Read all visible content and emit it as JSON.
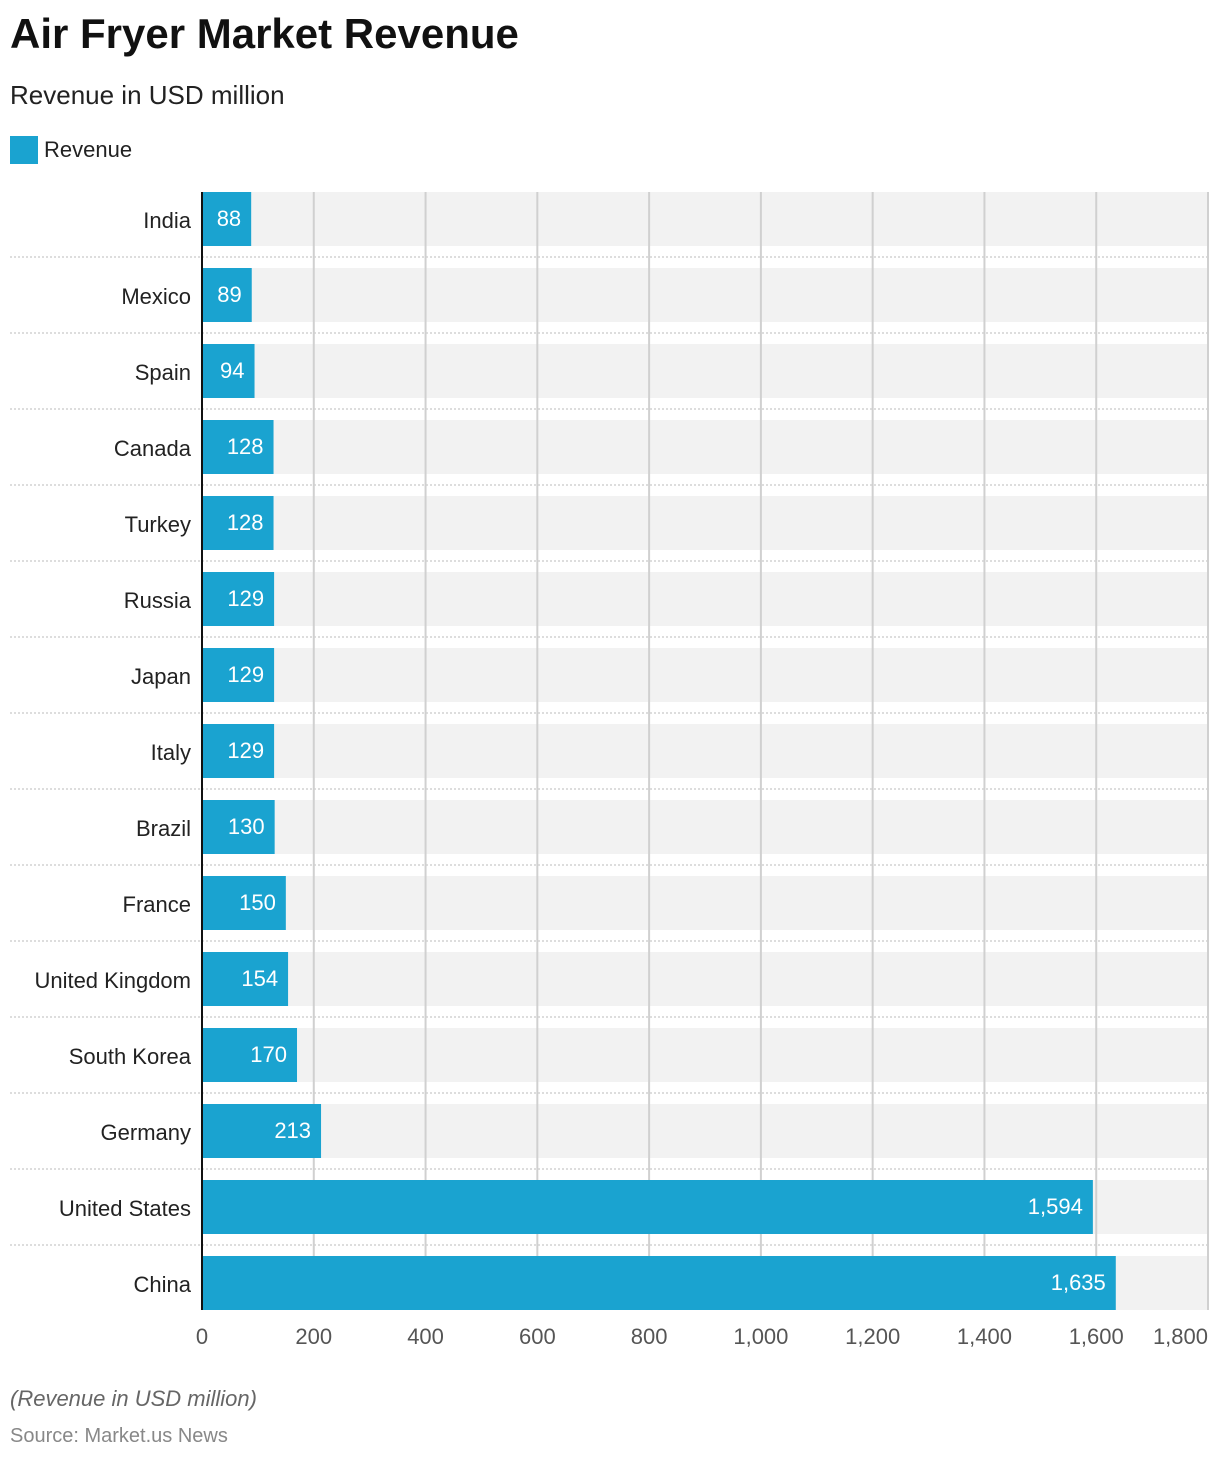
{
  "chart_data": {
    "type": "bar",
    "orientation": "horizontal",
    "title": "Air Fryer Market Revenue",
    "subtitle": "Revenue in USD million",
    "legend": [
      "Revenue"
    ],
    "legend_placement": "top-left",
    "categories": [
      "India",
      "Mexico",
      "Spain",
      "Canada",
      "Turkey",
      "Russia",
      "Japan",
      "Italy",
      "Brazil",
      "France",
      "United Kingdom",
      "South Korea",
      "Germany",
      "United States",
      "China"
    ],
    "series": [
      {
        "name": "Revenue",
        "values": [
          88,
          89,
          94,
          128,
          128,
          129,
          129,
          129,
          130,
          150,
          154,
          170,
          213,
          1594,
          1635
        ]
      }
    ],
    "value_labels": [
      "88",
      "89",
      "94",
      "128",
      "128",
      "129",
      "129",
      "129",
      "130",
      "150",
      "154",
      "170",
      "213",
      "1,594",
      "1,635"
    ],
    "xlim": [
      0,
      1800
    ],
    "xticks": [
      0,
      200,
      400,
      600,
      800,
      1000,
      1200,
      1400,
      1600,
      1800
    ],
    "xtick_labels": [
      "0",
      "200",
      "400",
      "600",
      "800",
      "1,000",
      "1,200",
      "1,400",
      "1,600",
      "1,800"
    ],
    "grid": true,
    "bar_color": "#1aa3d0"
  },
  "footer": {
    "note": "(Revenue in USD million)",
    "source": "Source: Market.us News"
  }
}
